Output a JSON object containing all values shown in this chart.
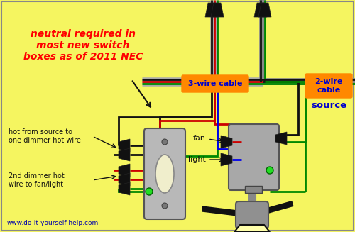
{
  "bg_color": "#f5f560",
  "title_text": "neutral required in\nmost new switch\nboxes as of 2011 NEC",
  "title_color": "#ff0000",
  "orange_color": "#ff8800",
  "blue_label_color": "#0000cc",
  "wire_black": "#111111",
  "wire_red": "#cc0000",
  "wire_green": "#008800",
  "wire_gray": "#999999",
  "wire_blue": "#0000ee",
  "label_3wire": "3-wire cable",
  "label_2wire": "2-wire\ncable",
  "label_source": "source",
  "label_fan": "fan",
  "label_light": "light",
  "label_hot1": "hot from source to\none dimmer hot wire",
  "label_2nd": "2nd dimmer hot\nwire to fan/light",
  "label_www": "www.do-it-yourself-help.com",
  "note_color": "#aaaaaa",
  "dimmer_body_color": "#b0b0b0",
  "fan_motor_color": "#909090"
}
